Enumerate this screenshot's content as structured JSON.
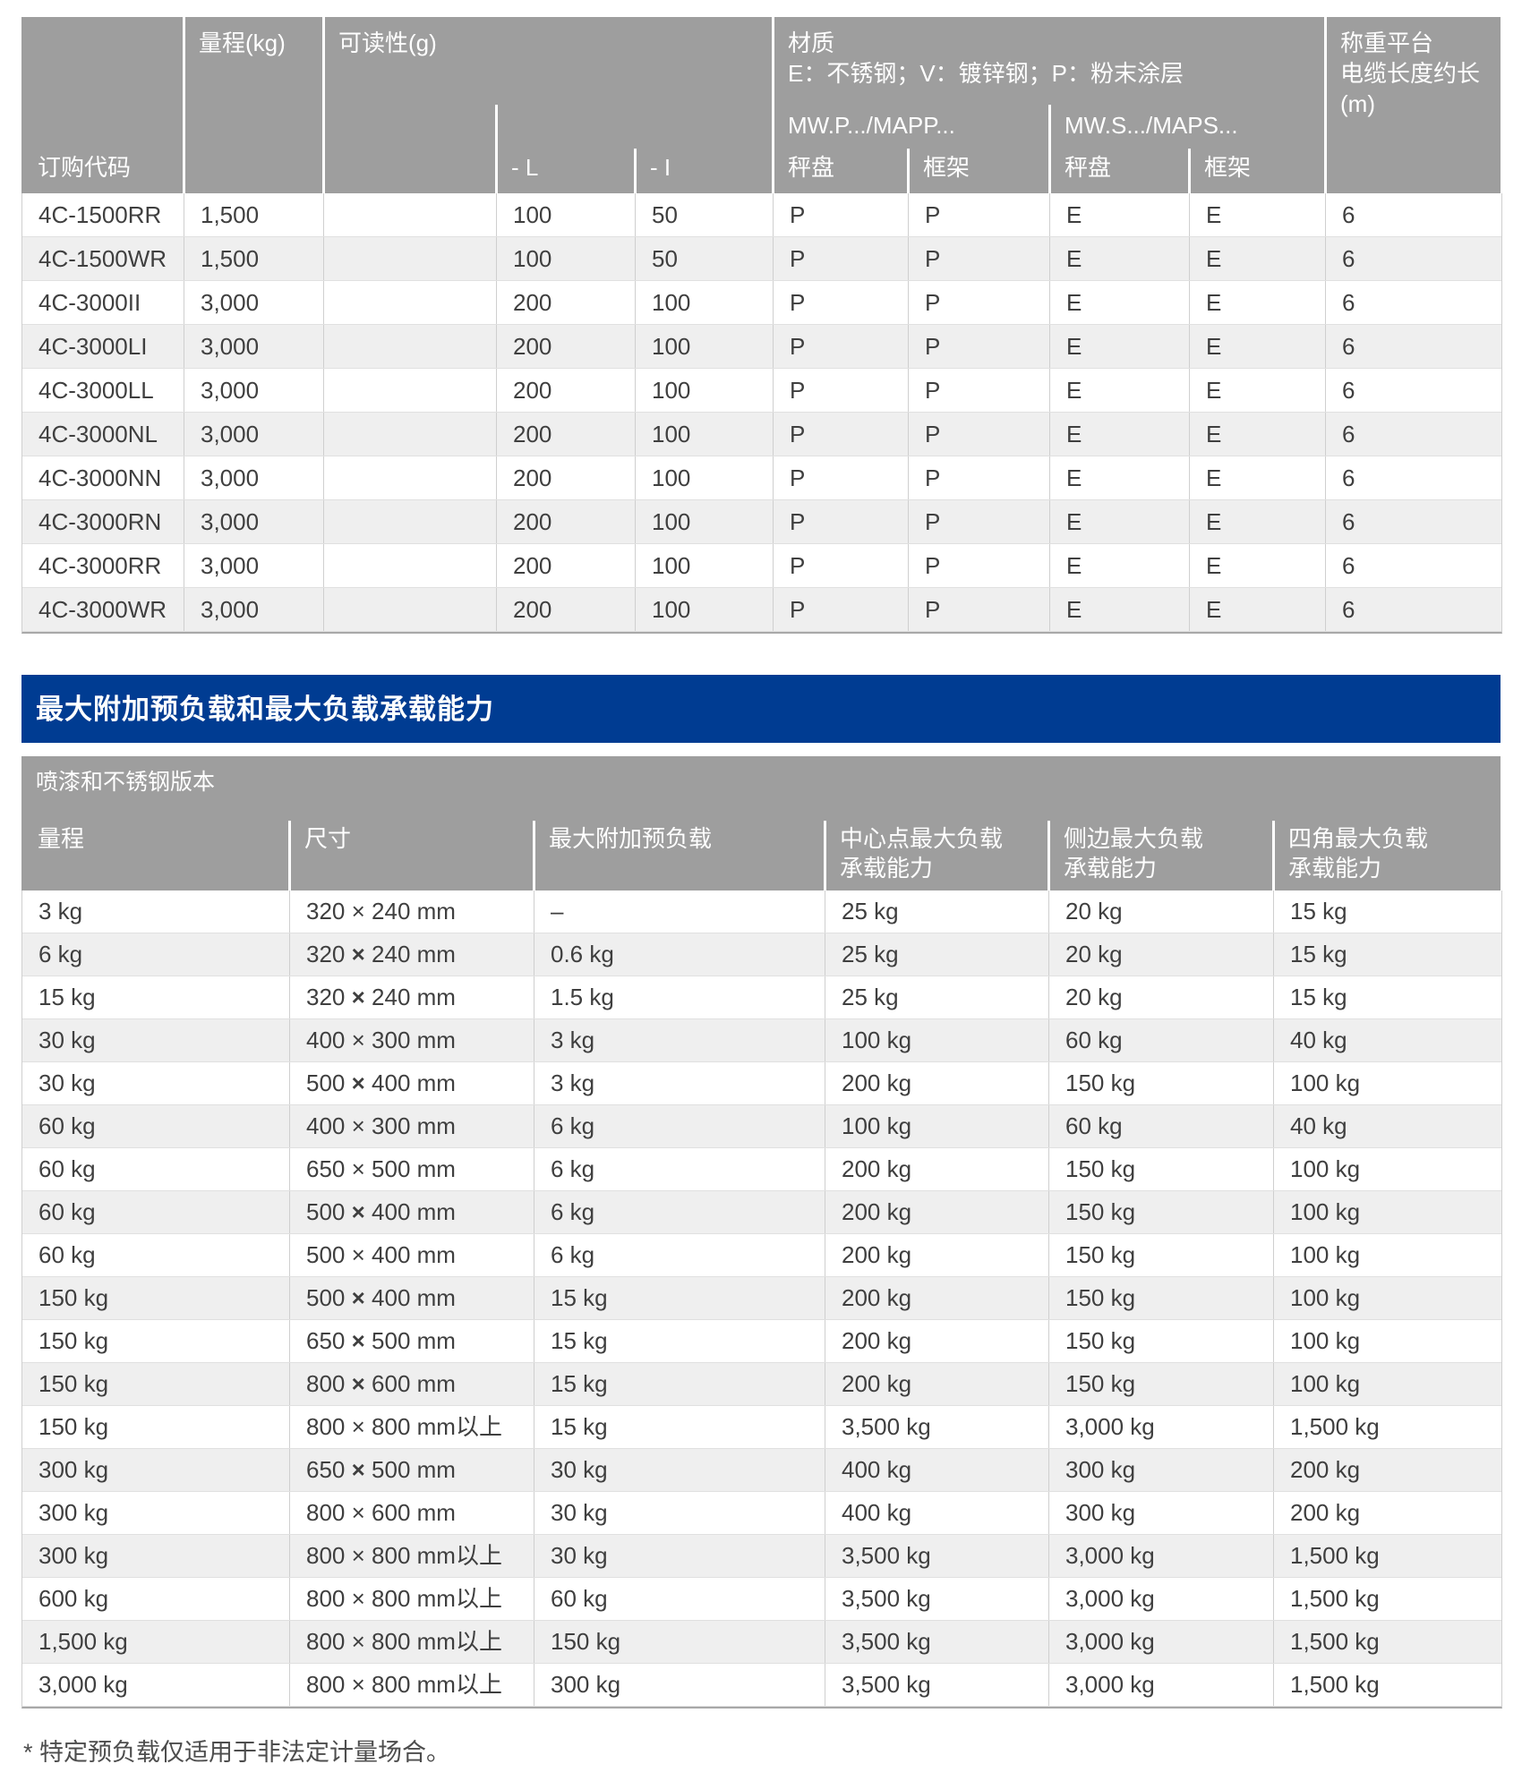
{
  "colors": {
    "header_gray": "#9e9e9e",
    "row_alt_gray": "#efefef",
    "banner_blue": "#003c92",
    "text_dark": "#3f3f3f"
  },
  "section": {
    "banner_title": "最大附加预负载和最大负载承载能力"
  },
  "footnote": "* 特定预负载仅适用于非法定计量场合。",
  "order_table": {
    "group_headers": {
      "range": "量程(kg)",
      "readability": "可读性(g)",
      "material": "材质",
      "material_legend": "E：不锈钢；V：镀锌钢；P：粉末涂层",
      "cable_line1": "称重平台",
      "cable_line2": "电缆长度约长",
      "cable_line3": "(m)"
    },
    "series_headers": {
      "mwp": "MW.P.../MAPP...",
      "mws": "MW.S.../MAPS..."
    },
    "col_headers": {
      "order_code": "订购代码",
      "dash_l": "- L",
      "dash_i": "- I",
      "pan": "秤盘",
      "frame": "框架"
    },
    "rows": [
      {
        "code": "4C-1500RR",
        "range": "1,500",
        "readability": "",
        "l": "100",
        "i": "50",
        "p_pan": "P",
        "p_frame": "P",
        "s_pan": "E",
        "s_frame": "E",
        "cable": "6"
      },
      {
        "code": "4C-1500WR",
        "range": "1,500",
        "readability": "",
        "l": "100",
        "i": "50",
        "p_pan": "P",
        "p_frame": "P",
        "s_pan": "E",
        "s_frame": "E",
        "cable": "6"
      },
      {
        "code": "4C-3000II",
        "range": "3,000",
        "readability": "",
        "l": "200",
        "i": "100",
        "p_pan": "P",
        "p_frame": "P",
        "s_pan": "E",
        "s_frame": "E",
        "cable": "6"
      },
      {
        "code": "4C-3000LI",
        "range": "3,000",
        "readability": "",
        "l": "200",
        "i": "100",
        "p_pan": "P",
        "p_frame": "P",
        "s_pan": "E",
        "s_frame": "E",
        "cable": "6"
      },
      {
        "code": "4C-3000LL",
        "range": "3,000",
        "readability": "",
        "l": "200",
        "i": "100",
        "p_pan": "P",
        "p_frame": "P",
        "s_pan": "E",
        "s_frame": "E",
        "cable": "6"
      },
      {
        "code": "4C-3000NL",
        "range": "3,000",
        "readability": "",
        "l": "200",
        "i": "100",
        "p_pan": "P",
        "p_frame": "P",
        "s_pan": "E",
        "s_frame": "E",
        "cable": "6"
      },
      {
        "code": "4C-3000NN",
        "range": "3,000",
        "readability": "",
        "l": "200",
        "i": "100",
        "p_pan": "P",
        "p_frame": "P",
        "s_pan": "E",
        "s_frame": "E",
        "cable": "6"
      },
      {
        "code": "4C-3000RN",
        "range": "3,000",
        "readability": "",
        "l": "200",
        "i": "100",
        "p_pan": "P",
        "p_frame": "P",
        "s_pan": "E",
        "s_frame": "E",
        "cable": "6"
      },
      {
        "code": "4C-3000RR",
        "range": "3,000",
        "readability": "",
        "l": "200",
        "i": "100",
        "p_pan": "P",
        "p_frame": "P",
        "s_pan": "E",
        "s_frame": "E",
        "cable": "6"
      },
      {
        "code": "4C-3000WR",
        "range": "3,000",
        "readability": "",
        "l": "200",
        "i": "100",
        "p_pan": "P",
        "p_frame": "P",
        "s_pan": "E",
        "s_frame": "E",
        "cable": "6"
      }
    ]
  },
  "load_table": {
    "subtitle": "喷漆和不锈钢版本",
    "headers": {
      "h0": "量程",
      "h1": "尺寸",
      "h2": "最大附加预负载",
      "h3_line1": "中心点最大负载",
      "h3_line2": "承载能力",
      "h4_line1": "侧边最大负载",
      "h4_line2": "承载能力",
      "h5_line1": "四角最大负载",
      "h5_line2": "承载能力"
    },
    "rows": [
      {
        "range": "3 kg",
        "dim": "320 × 240 mm",
        "heavy_x": false,
        "preload": "–",
        "center": "25 kg",
        "side": "20 kg",
        "corner": "15 kg"
      },
      {
        "range": "6 kg",
        "dim": "320 × 240 mm",
        "heavy_x": true,
        "preload": "0.6 kg",
        "center": "25 kg",
        "side": "20 kg",
        "corner": "15 kg"
      },
      {
        "range": "15 kg",
        "dim": "320 × 240 mm",
        "heavy_x": true,
        "preload": "1.5 kg",
        "center": "25 kg",
        "side": "20 kg",
        "corner": "15 kg"
      },
      {
        "range": "30 kg",
        "dim": "400 × 300 mm",
        "heavy_x": false,
        "preload": "3 kg",
        "center": "100 kg",
        "side": "60 kg",
        "corner": "40 kg"
      },
      {
        "range": "30 kg",
        "dim": "500 × 400 mm",
        "heavy_x": true,
        "preload": "3 kg",
        "center": "200 kg",
        "side": "150 kg",
        "corner": "100 kg"
      },
      {
        "range": "60 kg",
        "dim": "400 × 300 mm",
        "heavy_x": false,
        "preload": "6 kg",
        "center": "100 kg",
        "side": "60 kg",
        "corner": "40 kg"
      },
      {
        "range": "60 kg",
        "dim": "650 × 500 mm",
        "heavy_x": false,
        "preload": "6 kg",
        "center": "200 kg",
        "side": "150 kg",
        "corner": "100 kg"
      },
      {
        "range": "60 kg",
        "dim": "500 × 400 mm",
        "heavy_x": true,
        "preload": "6 kg",
        "center": "200 kg",
        "side": "150 kg",
        "corner": "100 kg"
      },
      {
        "range": "60 kg",
        "dim": "500 × 400 mm",
        "heavy_x": false,
        "preload": "6 kg",
        "center": "200 kg",
        "side": "150 kg",
        "corner": "100 kg"
      },
      {
        "range": "150 kg",
        "dim": "500 × 400 mm",
        "heavy_x": true,
        "preload": "15 kg",
        "center": "200 kg",
        "side": "150 kg",
        "corner": "100 kg"
      },
      {
        "range": "150 kg",
        "dim": "650 × 500 mm",
        "heavy_x": true,
        "preload": "15 kg",
        "center": "200 kg",
        "side": "150 kg",
        "corner": "100 kg"
      },
      {
        "range": "150 kg",
        "dim": "800 × 600 mm",
        "heavy_x": true,
        "preload": "15 kg",
        "center": "200 kg",
        "side": "150 kg",
        "corner": "100 kg"
      },
      {
        "range": "150 kg",
        "dim": "800 × 800 mm以上",
        "heavy_x": false,
        "preload": "15 kg",
        "center": "3,500 kg",
        "side": "3,000 kg",
        "corner": "1,500 kg"
      },
      {
        "range": "300 kg",
        "dim": "650 × 500 mm",
        "heavy_x": true,
        "preload": "30 kg",
        "center": "400 kg",
        "side": "300 kg",
        "corner": "200 kg"
      },
      {
        "range": "300 kg",
        "dim": "800 × 600 mm",
        "heavy_x": false,
        "preload": "30 kg",
        "center": "400 kg",
        "side": "300 kg",
        "corner": "200 kg"
      },
      {
        "range": "300 kg",
        "dim": "800 × 800 mm以上",
        "heavy_x": false,
        "preload": "30 kg",
        "center": "3,500 kg",
        "side": "3,000 kg",
        "corner": "1,500 kg"
      },
      {
        "range": "600 kg",
        "dim": "800 × 800 mm以上",
        "heavy_x": false,
        "preload": "60 kg",
        "center": "3,500 kg",
        "side": "3,000 kg",
        "corner": "1,500 kg"
      },
      {
        "range": "1,500 kg",
        "dim": "800 × 800 mm以上",
        "heavy_x": false,
        "preload": "150 kg",
        "center": "3,500 kg",
        "side": "3,000 kg",
        "corner": "1,500 kg"
      },
      {
        "range": "3,000 kg",
        "dim": "800 × 800 mm以上",
        "heavy_x": false,
        "preload": "300 kg",
        "center": "3,500 kg",
        "side": "3,000 kg",
        "corner": "1,500 kg"
      }
    ]
  }
}
